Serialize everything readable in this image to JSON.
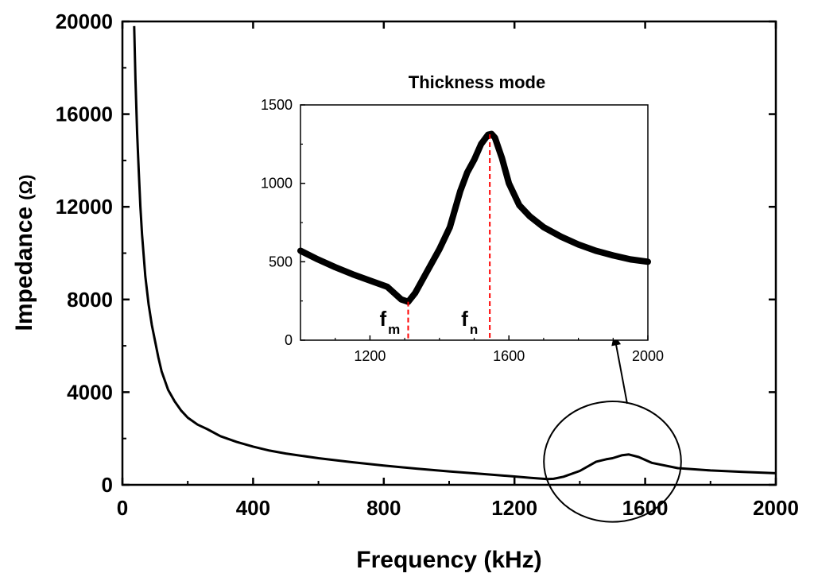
{
  "chart_data": [
    {
      "id": "main",
      "type": "line",
      "xlabel": "Frequency (kHz)",
      "ylabel_prefix": "Impedance",
      "ylabel_unit": "(Ω)",
      "xlim": [
        0,
        2000
      ],
      "ylim": [
        0,
        20000
      ],
      "xticks": [
        0,
        400,
        800,
        1200,
        1600,
        2000
      ],
      "yticks": [
        0,
        4000,
        8000,
        12000,
        16000,
        20000
      ],
      "series": [
        {
          "name": "Impedance",
          "x": [
            36,
            40,
            45,
            50,
            55,
            60,
            70,
            80,
            90,
            100,
            110,
            120,
            140,
            160,
            180,
            200,
            230,
            260,
            300,
            350,
            400,
            450,
            500,
            600,
            700,
            800,
            900,
            1000,
            1100,
            1200,
            1250,
            1300,
            1320,
            1350,
            1400,
            1450,
            1480,
            1500,
            1530,
            1550,
            1580,
            1620,
            1700,
            1800,
            1900,
            2000
          ],
          "y": [
            19800,
            17500,
            15200,
            13500,
            12000,
            10800,
            9000,
            7800,
            6900,
            6200,
            5500,
            4900,
            4100,
            3600,
            3200,
            2900,
            2600,
            2400,
            2100,
            1850,
            1650,
            1480,
            1350,
            1150,
            980,
            830,
            700,
            580,
            470,
            360,
            300,
            250,
            260,
            350,
            600,
            1000,
            1100,
            1150,
            1280,
            1310,
            1200,
            950,
            720,
            620,
            560,
            500
          ]
        }
      ],
      "annotations": [
        {
          "type": "ellipse",
          "center": [
            1500,
            1000
          ],
          "radius_x": 210,
          "radius_y": 2600
        },
        {
          "type": "arrow",
          "from": [
            1545,
            3500
          ],
          "to": [
            1505,
            6500
          ]
        }
      ]
    },
    {
      "id": "inset",
      "type": "line",
      "title": "Thickness mode",
      "xlim": [
        1000,
        2000
      ],
      "ylim": [
        0,
        1500
      ],
      "xticks": [
        1200,
        1600,
        2000
      ],
      "yticks": [
        0,
        500,
        1000,
        1500
      ],
      "series": [
        {
          "name": "Thickness mode impedance",
          "x": [
            1000,
            1050,
            1100,
            1150,
            1200,
            1250,
            1290,
            1310,
            1330,
            1360,
            1400,
            1430,
            1460,
            1480,
            1500,
            1520,
            1540,
            1550,
            1560,
            1580,
            1600,
            1630,
            1660,
            1700,
            1750,
            1800,
            1850,
            1900,
            1950,
            2000
          ],
          "y": [
            570,
            515,
            465,
            420,
            380,
            340,
            260,
            245,
            300,
            420,
            580,
            720,
            950,
            1070,
            1150,
            1250,
            1310,
            1315,
            1290,
            1160,
            1000,
            860,
            790,
            720,
            660,
            610,
            570,
            540,
            515,
            500
          ]
        }
      ],
      "markers": [
        {
          "label": "f",
          "sub": "m",
          "x": 1310
        },
        {
          "label": "f",
          "sub": "n",
          "x": 1545
        }
      ]
    }
  ],
  "colors": {
    "line": "#000000",
    "marker_line": "#ff0000"
  }
}
